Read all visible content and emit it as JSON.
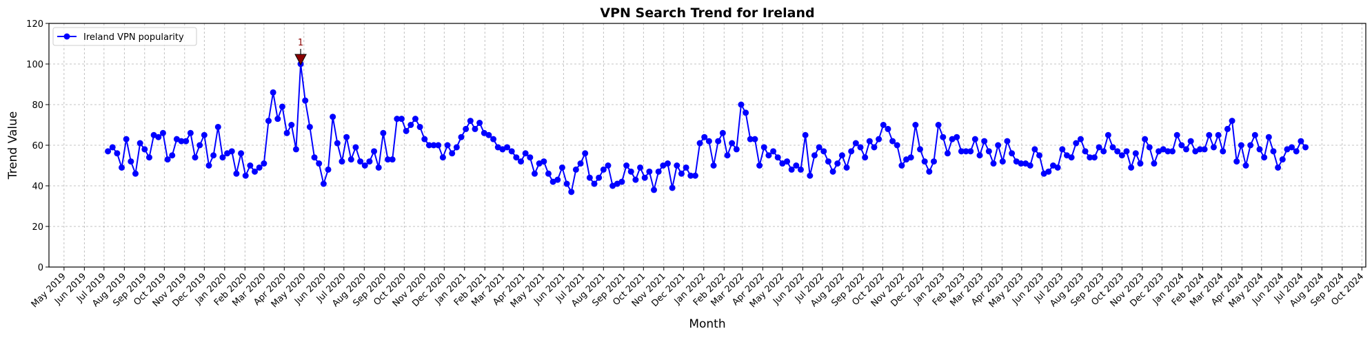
{
  "chart_data": {
    "type": "line",
    "title": "VPN Search Trend for Ireland",
    "xlabel": "Month",
    "ylabel": "Trend Value",
    "ylim": [
      0,
      120
    ],
    "xlim": [
      "2019-04-08",
      "2024-10-07"
    ],
    "y_ticks": [
      0,
      20,
      40,
      60,
      80,
      100,
      120
    ],
    "x_ticks": [
      "May 2019",
      "Jun 2019",
      "Jul 2019",
      "Aug 2019",
      "Sep 2019",
      "Oct 2019",
      "Nov 2019",
      "Dec 2019",
      "Jan 2020",
      "Feb 2020",
      "Mar 2020",
      "Apr 2020",
      "May 2020",
      "Jun 2020",
      "Jul 2020",
      "Aug 2020",
      "Sep 2020",
      "Oct 2020",
      "Nov 2020",
      "Dec 2020",
      "Jan 2021",
      "Feb 2021",
      "Mar 2021",
      "Apr 2021",
      "May 2021",
      "Jun 2021",
      "Jul 2021",
      "Aug 2021",
      "Sep 2021",
      "Oct 2021",
      "Nov 2021",
      "Dec 2021",
      "Jan 2022",
      "Feb 2022",
      "Mar 2022",
      "Apr 2022",
      "May 2022",
      "Jun 2022",
      "Jul 2022",
      "Aug 2022",
      "Sep 2022",
      "Oct 2022",
      "Nov 2022",
      "Dec 2022",
      "Jan 2023",
      "Feb 2023",
      "Mar 2023",
      "Apr 2023",
      "May 2023",
      "Jun 2023",
      "Jul 2023",
      "Aug 2023",
      "Sep 2023",
      "Oct 2023",
      "Nov 2023",
      "Dec 2023",
      "Jan 2024",
      "Feb 2024",
      "Mar 2024",
      "Apr 2024",
      "May 2024",
      "Jun 2024",
      "Jul 2024",
      "Aug 2024",
      "Sep 2024",
      "Oct 2024"
    ],
    "grid": true,
    "legend_position": "top-left",
    "series": [
      {
        "name": "Ireland VPN popularity",
        "color": "#0000ff",
        "marker": "circle",
        "x": [
          "2019-07-07",
          "2019-07-14",
          "2019-07-21",
          "2019-07-28",
          "2019-08-04",
          "2019-08-11",
          "2019-08-18",
          "2019-08-25",
          "2019-09-01",
          "2019-09-08",
          "2019-09-15",
          "2019-09-22",
          "2019-09-29",
          "2019-10-06",
          "2019-10-13",
          "2019-10-20",
          "2019-10-27",
          "2019-11-03",
          "2019-11-10",
          "2019-11-17",
          "2019-11-24",
          "2019-12-01",
          "2019-12-08",
          "2019-12-15",
          "2019-12-22",
          "2019-12-29",
          "2020-01-05",
          "2020-01-12",
          "2020-01-19",
          "2020-01-26",
          "2020-02-02",
          "2020-02-09",
          "2020-02-16",
          "2020-02-23",
          "2020-03-01",
          "2020-03-08",
          "2020-03-15",
          "2020-03-22",
          "2020-03-29",
          "2020-04-05",
          "2020-04-12",
          "2020-04-19",
          "2020-04-26",
          "2020-05-03",
          "2020-05-10",
          "2020-05-17",
          "2020-05-24",
          "2020-05-31",
          "2020-06-07",
          "2020-06-14",
          "2020-06-21",
          "2020-06-28",
          "2020-07-05",
          "2020-07-12",
          "2020-07-19",
          "2020-07-26",
          "2020-08-02",
          "2020-08-09",
          "2020-08-16",
          "2020-08-23",
          "2020-08-30",
          "2020-09-06",
          "2020-09-13",
          "2020-09-20",
          "2020-09-27",
          "2020-10-04",
          "2020-10-11",
          "2020-10-18",
          "2020-10-25",
          "2020-11-01",
          "2020-11-08",
          "2020-11-15",
          "2020-11-22",
          "2020-11-29",
          "2020-12-06",
          "2020-12-13",
          "2020-12-20",
          "2020-12-27",
          "2021-01-03",
          "2021-01-10",
          "2021-01-17",
          "2021-01-24",
          "2021-01-31",
          "2021-02-07",
          "2021-02-14",
          "2021-02-21",
          "2021-02-28",
          "2021-03-07",
          "2021-03-14",
          "2021-03-21",
          "2021-03-28",
          "2021-04-04",
          "2021-04-11",
          "2021-04-18",
          "2021-04-25",
          "2021-05-02",
          "2021-05-09",
          "2021-05-16",
          "2021-05-23",
          "2021-05-30",
          "2021-06-06",
          "2021-06-13",
          "2021-06-20",
          "2021-06-27",
          "2021-07-04",
          "2021-07-11",
          "2021-07-18",
          "2021-07-25",
          "2021-08-01",
          "2021-08-08",
          "2021-08-15",
          "2021-08-22",
          "2021-08-29",
          "2021-09-05",
          "2021-09-12",
          "2021-09-19",
          "2021-09-26",
          "2021-10-03",
          "2021-10-10",
          "2021-10-17",
          "2021-10-24",
          "2021-10-31",
          "2021-11-07",
          "2021-11-14",
          "2021-11-21",
          "2021-11-28",
          "2021-12-05",
          "2021-12-12",
          "2021-12-19",
          "2021-12-26",
          "2022-01-02",
          "2022-01-09",
          "2022-01-16",
          "2022-01-23",
          "2022-01-30",
          "2022-02-06",
          "2022-02-13",
          "2022-02-20",
          "2022-02-27",
          "2022-03-06",
          "2022-03-13",
          "2022-03-20",
          "2022-03-27",
          "2022-04-03",
          "2022-04-10",
          "2022-04-17",
          "2022-04-24",
          "2022-05-01",
          "2022-05-08",
          "2022-05-15",
          "2022-05-22",
          "2022-05-29",
          "2022-06-05",
          "2022-06-12",
          "2022-06-19",
          "2022-06-26",
          "2022-07-03",
          "2022-07-10",
          "2022-07-17",
          "2022-07-24",
          "2022-07-31",
          "2022-08-07",
          "2022-08-14",
          "2022-08-21",
          "2022-08-28",
          "2022-09-04",
          "2022-09-11",
          "2022-09-18",
          "2022-09-25",
          "2022-10-02",
          "2022-10-09",
          "2022-10-16",
          "2022-10-23",
          "2022-10-30",
          "2022-11-06",
          "2022-11-13",
          "2022-11-20",
          "2022-11-27",
          "2022-12-04",
          "2022-12-11",
          "2022-12-18",
          "2022-12-25",
          "2023-01-01",
          "2023-01-08",
          "2023-01-15",
          "2023-01-22",
          "2023-01-29",
          "2023-02-05",
          "2023-02-12",
          "2023-02-19",
          "2023-02-26",
          "2023-03-05",
          "2023-03-12",
          "2023-03-19",
          "2023-03-26",
          "2023-04-02",
          "2023-04-09",
          "2023-04-16",
          "2023-04-23",
          "2023-04-30",
          "2023-05-07",
          "2023-05-14",
          "2023-05-21",
          "2023-05-28",
          "2023-06-04",
          "2023-06-11",
          "2023-06-18",
          "2023-06-25",
          "2023-07-02",
          "2023-07-09",
          "2023-07-16",
          "2023-07-23",
          "2023-07-30",
          "2023-08-06",
          "2023-08-13",
          "2023-08-20",
          "2023-08-27",
          "2023-09-03",
          "2023-09-10",
          "2023-09-17",
          "2023-09-24",
          "2023-10-01",
          "2023-10-08",
          "2023-10-15",
          "2023-10-22",
          "2023-10-29",
          "2023-11-05",
          "2023-11-12",
          "2023-11-19",
          "2023-11-26",
          "2023-12-03",
          "2023-12-10",
          "2023-12-17",
          "2023-12-24",
          "2023-12-31",
          "2024-01-07",
          "2024-01-14",
          "2024-01-21",
          "2024-01-28",
          "2024-02-04",
          "2024-02-11",
          "2024-02-18",
          "2024-02-25",
          "2024-03-03",
          "2024-03-10",
          "2024-03-17",
          "2024-03-24",
          "2024-03-31",
          "2024-04-07",
          "2024-04-14",
          "2024-04-21",
          "2024-04-28",
          "2024-05-05",
          "2024-05-12",
          "2024-05-19",
          "2024-05-26",
          "2024-06-02",
          "2024-06-09",
          "2024-06-16",
          "2024-06-23",
          "2024-06-30",
          "2024-07-07"
        ],
        "values": [
          57,
          59,
          56,
          49,
          63,
          52,
          46,
          61,
          58,
          54,
          65,
          64,
          66,
          53,
          55,
          63,
          62,
          62,
          66,
          54,
          60,
          65,
          50,
          55,
          69,
          54,
          56,
          57,
          46,
          56,
          45,
          50,
          47,
          49,
          51,
          72,
          86,
          73,
          79,
          66,
          70,
          58,
          100,
          82,
          69,
          54,
          51,
          41,
          48,
          74,
          61,
          52,
          64,
          53,
          59,
          52,
          50,
          52,
          57,
          49,
          66,
          53,
          53,
          73,
          73,
          67,
          70,
          73,
          69,
          63,
          60,
          60,
          60,
          54,
          60,
          56,
          59,
          64,
          68,
          72,
          68,
          71,
          66,
          65,
          63,
          59,
          58,
          59,
          57,
          54,
          52,
          56,
          54,
          46,
          51,
          52,
          46,
          42,
          43,
          49,
          41,
          37,
          48,
          51,
          56,
          44,
          41,
          44,
          48,
          50,
          40,
          41,
          42,
          50,
          47,
          43,
          49,
          44,
          47,
          38,
          47,
          50,
          51,
          39,
          50,
          46,
          49,
          45,
          45,
          61,
          64,
          62,
          50,
          62,
          66,
          55,
          61,
          58,
          80,
          76,
          63,
          63,
          50,
          59,
          55,
          57,
          54,
          51,
          52,
          48,
          50,
          48,
          65,
          45,
          55,
          59,
          57,
          52,
          47,
          51,
          55,
          49,
          57,
          61,
          59,
          54,
          62,
          59,
          63,
          70,
          68,
          62,
          60,
          50,
          53,
          54,
          70,
          58,
          52,
          47,
          52,
          70,
          64,
          56,
          63,
          64,
          57,
          57,
          57,
          63,
          55,
          62,
          57,
          51,
          60,
          52,
          62,
          56,
          52,
          51,
          51,
          50,
          58,
          55,
          46,
          47,
          50,
          49,
          58,
          55,
          54,
          61,
          63,
          57,
          54,
          54,
          59,
          57,
          65,
          59,
          57,
          55,
          57,
          49,
          56,
          51,
          63,
          59,
          51,
          57,
          58,
          57,
          57,
          65,
          60,
          58,
          62,
          57,
          58,
          58,
          65,
          59,
          65,
          57,
          68,
          72,
          52,
          60,
          50,
          60,
          65,
          58,
          54,
          64,
          57,
          49,
          53,
          58,
          59,
          57,
          62,
          59
        ]
      }
    ],
    "annotations": [
      {
        "label": "1",
        "x": "2020-04-26",
        "y": 100,
        "marker": "triangle-down",
        "color": "#8b0000"
      }
    ]
  }
}
